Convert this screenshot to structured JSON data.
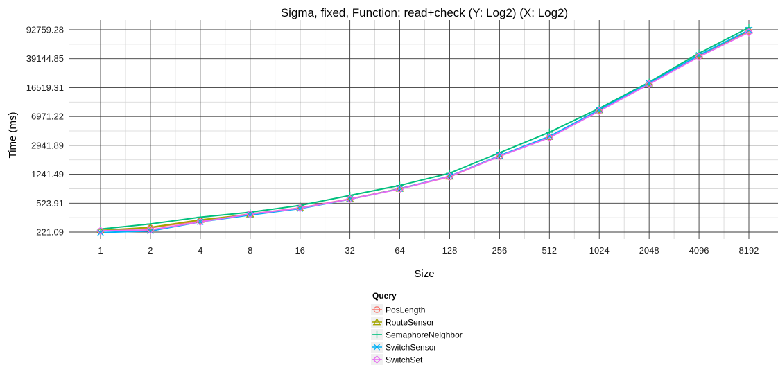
{
  "chart_data": {
    "type": "line",
    "title": "Sigma, fixed, Function: read+check (Y: Log2) (X: Log2)",
    "xlabel": "Size",
    "ylabel": "Time (ms)",
    "x_scale": "log2",
    "y_scale": "log2",
    "x": [
      1,
      2,
      4,
      8,
      16,
      32,
      64,
      128,
      256,
      512,
      1024,
      2048,
      4096,
      8192
    ],
    "x_tick_labels": [
      "1",
      "2",
      "4",
      "8",
      "16",
      "32",
      "64",
      "128",
      "256",
      "512",
      "1024",
      "2048",
      "4096",
      "8192"
    ],
    "y_ticks": [
      221.09,
      523.91,
      1241.49,
      2941.89,
      6971.22,
      16519.31,
      39144.85,
      92759.28
    ],
    "y_tick_labels": [
      "221.09",
      "523.91",
      "1241.49",
      "2941.89",
      "6971.22",
      "16519.31",
      "39144.85",
      "92759.28"
    ],
    "grid": true,
    "legend": {
      "title": "Query",
      "placement": "bottom"
    },
    "series": [
      {
        "name": "PosLength",
        "color": "#F8766D",
        "marker": "circle",
        "values": [
          228,
          251,
          311,
          380,
          455,
          595,
          805,
          1150,
          2130,
          3730,
          8280,
          18500,
          42000,
          88000
        ]
      },
      {
        "name": "RouteSensor",
        "color": "#A3A500",
        "marker": "triangle",
        "values": [
          232,
          255,
          318,
          375,
          450,
          590,
          810,
          1160,
          2150,
          3800,
          8400,
          18800,
          43000,
          91000
        ]
      },
      {
        "name": "SemaphoreNeighbor",
        "color": "#00BF7D",
        "marker": "plus",
        "values": [
          242,
          282,
          345,
          400,
          490,
          660,
          890,
          1280,
          2360,
          4350,
          8900,
          19400,
          46000,
          99000
        ]
      },
      {
        "name": "SwitchSensor",
        "color": "#00B0F6",
        "marker": "x",
        "values": [
          218,
          228,
          300,
          368,
          445,
          590,
          805,
          1170,
          2160,
          3840,
          8500,
          18800,
          43500,
          92000
        ]
      },
      {
        "name": "SwitchSet",
        "color": "#E76BF3",
        "marker": "diamond",
        "values": [
          230,
          236,
          300,
          378,
          452,
          592,
          800,
          1160,
          2120,
          3700,
          8200,
          18300,
          41500,
          86000
        ]
      }
    ]
  }
}
